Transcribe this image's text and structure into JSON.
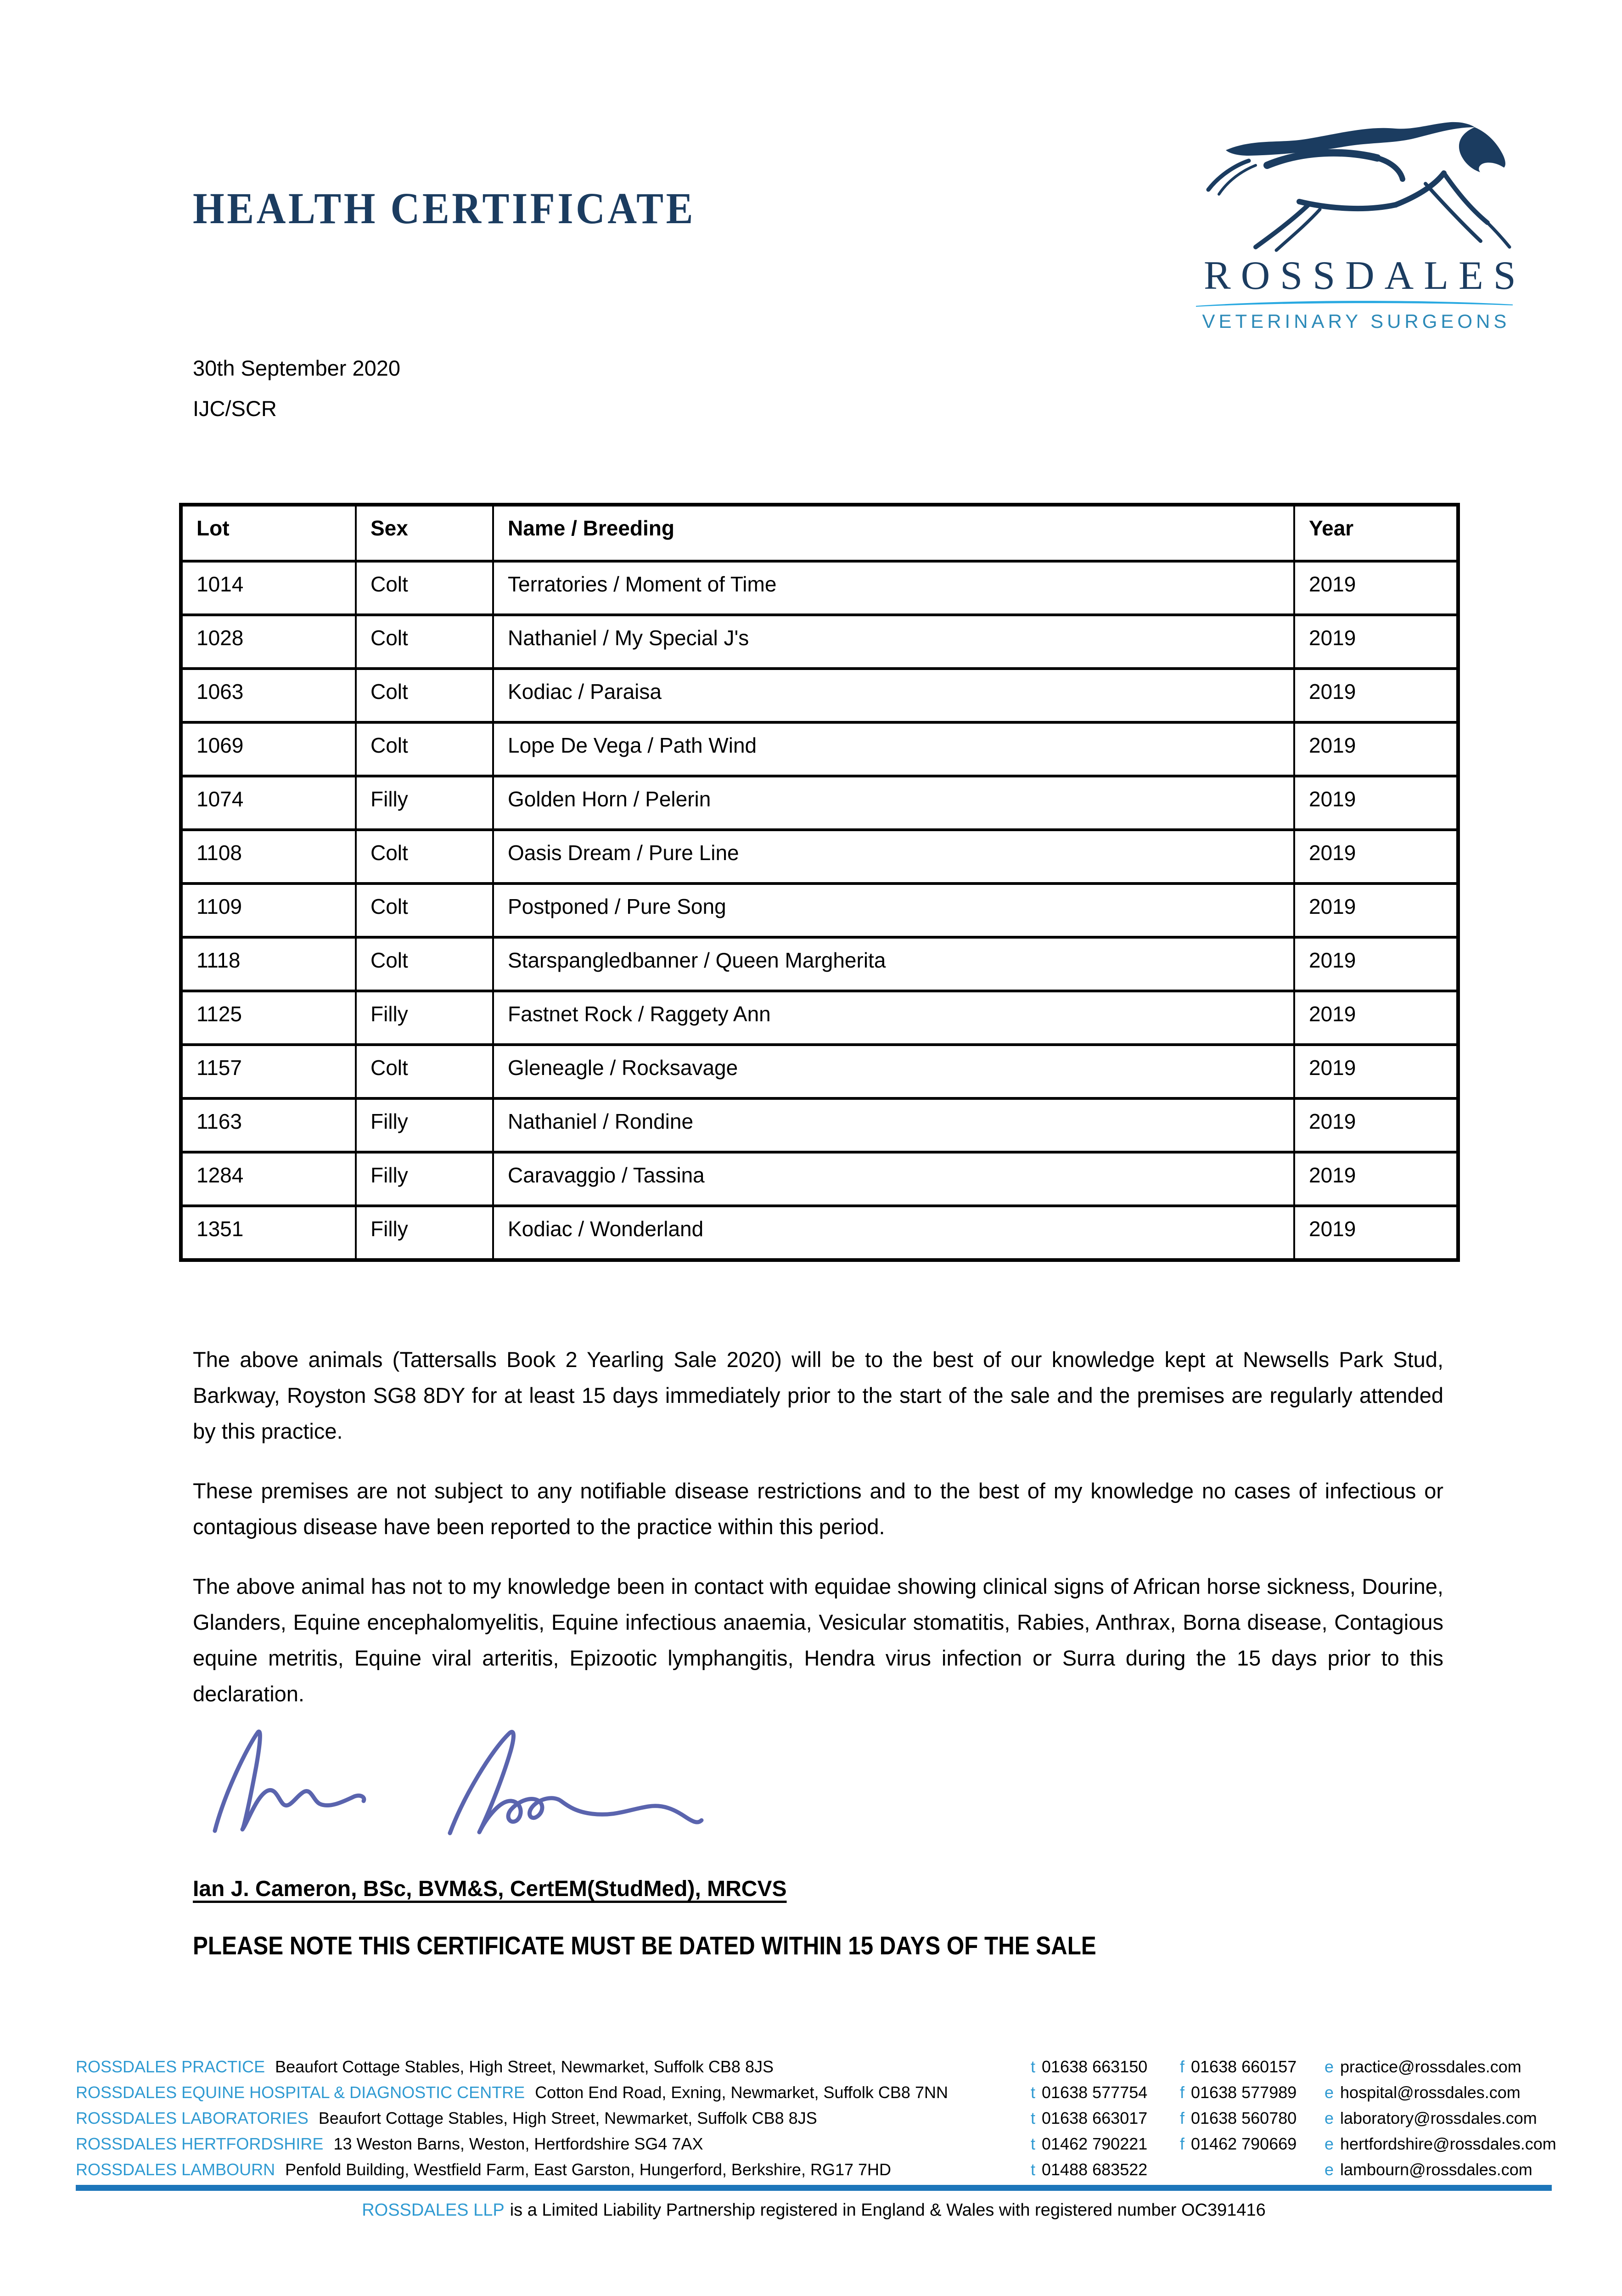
{
  "header": {
    "title": "HEALTH CERTIFICATE",
    "date": "30th September 2020",
    "reference": "IJC/SCR"
  },
  "logo": {
    "name": "ROSSDALES",
    "subtitle": "VETERINARY SURGEONS"
  },
  "colors": {
    "navy": "#1b3c60",
    "label_blue": "#2f9ad2",
    "subtitle_blue": "#2c8ab8",
    "swoosh_blue": "#29a9e1",
    "bar_blue": "#1d76ba",
    "signature_ink": "#5a64ae"
  },
  "table": {
    "headers": [
      "Lot",
      "Sex",
      "Name / Breeding",
      "Year"
    ],
    "rows": [
      [
        "1014",
        "Colt",
        "Terratories / Moment of Time",
        "2019"
      ],
      [
        "1028",
        "Colt",
        "Nathaniel / My Special J's",
        "2019"
      ],
      [
        "1063",
        "Colt",
        "Kodiac / Paraisa",
        "2019"
      ],
      [
        "1069",
        "Colt",
        "Lope De Vega / Path Wind",
        "2019"
      ],
      [
        "1074",
        "Filly",
        "Golden Horn / Pelerin",
        "2019"
      ],
      [
        "1108",
        "Colt",
        "Oasis Dream / Pure Line",
        "2019"
      ],
      [
        "1109",
        "Colt",
        "Postponed / Pure Song",
        "2019"
      ],
      [
        "1118",
        "Colt",
        "Starspangledbanner / Queen Margherita",
        "2019"
      ],
      [
        "1125",
        "Filly",
        "Fastnet Rock / Raggety Ann",
        "2019"
      ],
      [
        "1157",
        "Colt",
        "Gleneagle / Rocksavage",
        "2019"
      ],
      [
        "1163",
        "Filly",
        "Nathaniel / Rondine",
        "2019"
      ],
      [
        "1284",
        "Filly",
        "Caravaggio / Tassina",
        "2019"
      ],
      [
        "1351",
        "Filly",
        "Kodiac / Wonderland",
        "2019"
      ]
    ]
  },
  "paragraphs": [
    "The above animals (Tattersalls Book 2 Yearling Sale 2020) will be to the best of our knowledge kept at Newsells Park Stud, Barkway, Royston SG8 8DY for at least 15 days immediately prior to the start of the sale and the premises are regularly attended by this practice.",
    "These premises are not subject to any notifiable disease restrictions and to the best of my knowledge no cases of infectious or contagious disease have been reported to the practice within this period.",
    "The above animal has not to my knowledge been in contact with equidae showing clinical signs of African horse sickness, Dourine, Glanders, Equine encephalomyelitis, Equine infectious anaemia, Vesicular stomatitis, Rabies, Anthrax, Borna disease, Contagious equine metritis, Equine viral arteritis, Epizootic lymphangitis, Hendra virus infection or Surra during the 15 days prior to this declaration."
  ],
  "signatory": "Ian J. Cameron, BSc, BVM&S, CertEM(StudMed), MRCVS",
  "notice": "PLEASE NOTE THIS CERTIFICATE MUST BE DATED WITHIN 15 DAYS OF THE SALE",
  "footer": {
    "locations": [
      {
        "label": "ROSSDALES PRACTICE",
        "address": "Beaufort Cottage Stables, High Street, Newmarket, Suffolk CB8 8JS",
        "t": "01638 663150",
        "f": "01638 660157",
        "e": "practice@rossdales.com"
      },
      {
        "label": "ROSSDALES EQUINE HOSPITAL & DIAGNOSTIC CENTRE",
        "address": "Cotton End Road, Exning, Newmarket, Suffolk CB8 7NN",
        "t": "01638 577754",
        "f": "01638 577989",
        "e": "hospital@rossdales.com"
      },
      {
        "label": "ROSSDALES LABORATORIES",
        "address": "Beaufort Cottage Stables, High Street, Newmarket, Suffolk CB8 8JS",
        "t": "01638 663017",
        "f": "01638 560780",
        "e": "laboratory@rossdales.com"
      },
      {
        "label": "ROSSDALES HERTFORDSHIRE",
        "address": "13 Weston Barns, Weston, Hertfordshire SG4 7AX",
        "t": "01462 790221",
        "f": "01462 790669",
        "e": "hertfordshire@rossdales.com"
      },
      {
        "label": "ROSSDALES LAMBOURN",
        "address": "Penfold Building, Westfield Farm, East Garston, Hungerford, Berkshire, RG17 7HD",
        "t": "01488 683522",
        "f": "",
        "e": "lambourn@rossdales.com"
      }
    ],
    "registration_prefix": "ROSSDALES LLP",
    "registration_text": "is a Limited Liability Partnership registered in England & Wales with registered number OC391416"
  }
}
